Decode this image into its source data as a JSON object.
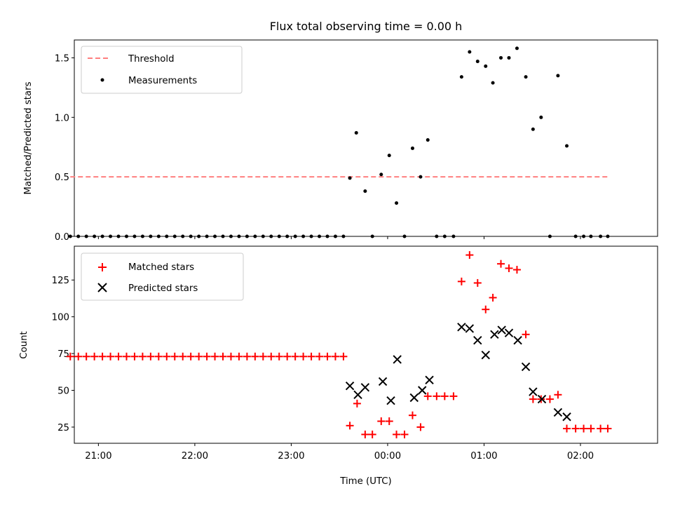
{
  "chart_data": [
    {
      "type": "scatter",
      "title": "Flux total observing time = 0.00 h",
      "xlabel": "",
      "ylabel": "Matched/Predicted stars",
      "ylim": [
        0,
        1.65
      ],
      "yticks": [
        0.0,
        0.5,
        1.0,
        1.5
      ],
      "ytick_labels": [
        "0.0",
        "0.5",
        "1.0",
        "1.5"
      ],
      "xlim": [
        -3.25,
        2.8
      ],
      "xticks": [
        -3,
        -2,
        -1,
        0,
        1,
        2
      ],
      "xtick_labels": [
        "21:00",
        "22:00",
        "23:00",
        "00:00",
        "01:00",
        "02:00"
      ],
      "legend_position": "top-left",
      "series": [
        {
          "name": "Threshold",
          "kind": "dashed-line",
          "color": "#ff7f7f",
          "x": [
            -3.2917,
            2.2833
          ],
          "y": [
            0.5,
            0.5
          ]
        },
        {
          "name": "Measurements",
          "kind": "dot",
          "color": "#000000",
          "x": [
            -3.2917,
            -3.2083,
            -3.125,
            -3.0417,
            -2.9583,
            -2.875,
            -2.7917,
            -2.7083,
            -2.625,
            -2.5417,
            -2.4583,
            -2.375,
            -2.2917,
            -2.2083,
            -2.125,
            -2.0417,
            -1.9583,
            -1.875,
            -1.7917,
            -1.7083,
            -1.625,
            -1.5417,
            -1.4583,
            -1.375,
            -1.2917,
            -1.2083,
            -1.125,
            -1.0417,
            -0.9583,
            -0.875,
            -0.7917,
            -0.7083,
            -0.625,
            -0.5417,
            -0.4583,
            -0.3917,
            -0.325,
            -0.2333,
            -0.1583,
            -0.0667,
            0.0167,
            0.0917,
            0.175,
            0.2583,
            0.3417,
            0.4167,
            0.5083,
            0.5917,
            0.6833,
            0.7667,
            0.85,
            0.9333,
            1.0167,
            1.0917,
            1.175,
            1.2583,
            1.3417,
            1.4333,
            1.5083,
            1.5917,
            1.6833,
            1.7667,
            1.8583,
            1.95,
            2.0333,
            2.1083,
            2.2083,
            2.2833
          ],
          "y": [
            0,
            0,
            0,
            0,
            0,
            0,
            0,
            0,
            0,
            0,
            0,
            0,
            0,
            0,
            0,
            0,
            0,
            0,
            0,
            0,
            0,
            0,
            0,
            0,
            0,
            0,
            0,
            0,
            0,
            0,
            0,
            0,
            0,
            0,
            0,
            0.49,
            0.87,
            0.38,
            0,
            0.52,
            0.68,
            0.28,
            0,
            0.74,
            0.5,
            0.81,
            0,
            0,
            0,
            1.34,
            1.55,
            1.47,
            1.43,
            1.29,
            1.5,
            1.5,
            1.58,
            1.34,
            0.9,
            1.0,
            0,
            1.35,
            0.76,
            0,
            0,
            0,
            0,
            0
          ]
        }
      ]
    },
    {
      "type": "scatter",
      "title": "",
      "xlabel": "Time (UTC)",
      "ylabel": "Count",
      "ylim": [
        14,
        148
      ],
      "yticks": [
        25,
        50,
        75,
        100,
        125
      ],
      "ytick_labels": [
        "25",
        "50",
        "75",
        "100",
        "125"
      ],
      "xlim": [
        -3.25,
        2.8
      ],
      "xticks": [
        -3,
        -2,
        -1,
        0,
        1,
        2
      ],
      "xtick_labels": [
        "21:00",
        "22:00",
        "23:00",
        "00:00",
        "01:00",
        "02:00"
      ],
      "legend_position": "top-left",
      "series": [
        {
          "name": "Matched stars",
          "kind": "plus",
          "color": "#ff0000",
          "x": [
            -3.2917,
            -3.2083,
            -3.125,
            -3.0417,
            -2.9583,
            -2.875,
            -2.7917,
            -2.7083,
            -2.625,
            -2.5417,
            -2.4583,
            -2.375,
            -2.2917,
            -2.2083,
            -2.125,
            -2.0417,
            -1.9583,
            -1.875,
            -1.7917,
            -1.7083,
            -1.625,
            -1.5417,
            -1.4583,
            -1.375,
            -1.2917,
            -1.2083,
            -1.125,
            -1.0417,
            -0.9583,
            -0.875,
            -0.7917,
            -0.7083,
            -0.625,
            -0.5417,
            -0.4583,
            -0.3917,
            -0.3167,
            -0.2333,
            -0.1583,
            -0.0667,
            0.0167,
            0.0917,
            0.175,
            0.2583,
            0.3417,
            0.4167,
            0.5083,
            0.5917,
            0.6833,
            0.7667,
            0.85,
            0.9333,
            1.0167,
            1.0917,
            1.175,
            1.2583,
            1.3417,
            1.4333,
            1.5083,
            1.5917,
            1.6833,
            1.7667,
            1.8583,
            1.95,
            2.0333,
            2.1083,
            2.2083,
            2.2833
          ],
          "y": [
            73,
            73,
            73,
            73,
            73,
            73,
            73,
            73,
            73,
            73,
            73,
            73,
            73,
            73,
            73,
            73,
            73,
            73,
            73,
            73,
            73,
            73,
            73,
            73,
            73,
            73,
            73,
            73,
            73,
            73,
            73,
            73,
            73,
            73,
            73,
            26,
            41,
            20,
            20,
            29,
            29,
            20,
            20,
            33,
            25,
            46,
            46,
            46,
            46,
            124,
            142,
            123,
            105,
            113,
            136,
            133,
            132,
            88,
            44,
            44,
            44,
            47,
            24,
            24,
            24,
            24,
            24,
            24
          ]
        },
        {
          "name": "Predicted stars",
          "kind": "x",
          "color": "#000000",
          "x": [
            -0.3917,
            -0.3083,
            -0.2333,
            -0.05,
            0.0333,
            0.1,
            0.275,
            0.3583,
            0.4333,
            0.7667,
            0.85,
            0.9333,
            1.0167,
            1.1083,
            1.1833,
            1.2583,
            1.35,
            1.4333,
            1.5083,
            1.6,
            1.7667,
            1.8583
          ],
          "y": [
            53,
            47,
            52,
            56,
            43,
            71,
            45,
            50,
            57,
            93,
            92,
            84,
            74,
            88,
            91,
            89,
            84,
            66,
            49,
            44,
            35,
            32
          ]
        }
      ]
    }
  ]
}
